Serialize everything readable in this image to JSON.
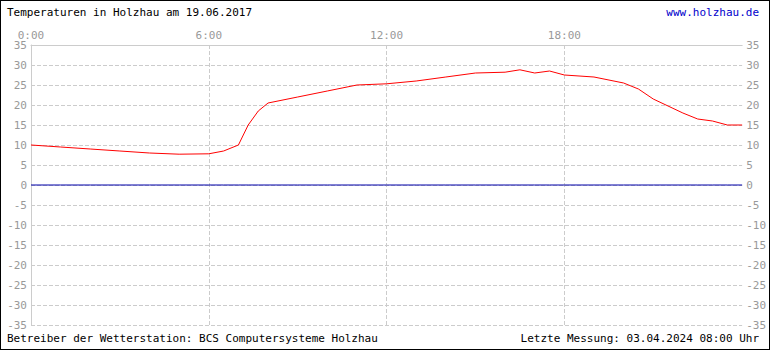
{
  "chart_data": {
    "type": "line",
    "title": "Temperaturen in Holzhau am 19.06.2017",
    "subtitle": "www.holzhau.de",
    "annotations": [
      "Betreiber der Wetterstation: BCS Computersysteme Holzhau",
      "Letzte Messung: 03.04.2024 08:00 Uhr"
    ],
    "x": [
      0,
      1,
      2,
      3,
      4,
      5,
      6,
      6.5,
      7,
      7.33,
      7.67,
      8,
      9,
      10,
      11,
      12,
      13,
      14,
      15,
      16,
      16.5,
      17,
      17.5,
      18,
      19,
      20,
      20.5,
      21,
      22,
      22.5,
      23,
      23.5,
      24
    ],
    "series": [
      {
        "color": "#ff0000",
        "values": [
          10,
          9.5,
          9,
          8.5,
          8,
          7.7,
          7.8,
          8.5,
          10,
          15,
          18.5,
          20.5,
          22,
          23.5,
          25,
          25.3,
          26,
          27,
          28,
          28.2,
          28.8,
          28,
          28.5,
          27.5,
          27,
          25.5,
          24,
          21.5,
          18,
          16.5,
          16,
          15,
          15
        ]
      },
      {
        "color": "#0000aa",
        "values": [
          0,
          0,
          0,
          0,
          0,
          0,
          0,
          0,
          0,
          0,
          0,
          0,
          0,
          0,
          0,
          0,
          0,
          0,
          0,
          0,
          0,
          0,
          0,
          0,
          0,
          0,
          0,
          0,
          0,
          0,
          0,
          0,
          0
        ]
      }
    ],
    "xlim": [
      0,
      24
    ],
    "xticks": [
      {
        "value": 0,
        "label": "0:00"
      },
      {
        "value": 6,
        "label": "6:00"
      },
      {
        "value": 12,
        "label": "12:00"
      },
      {
        "value": 18,
        "label": "18:00"
      }
    ],
    "ylim": [
      -35,
      35
    ],
    "yticks": [
      -35,
      -30,
      -25,
      -20,
      -15,
      -10,
      -5,
      0,
      5,
      10,
      15,
      20,
      25,
      30,
      35
    ],
    "grid": true
  }
}
